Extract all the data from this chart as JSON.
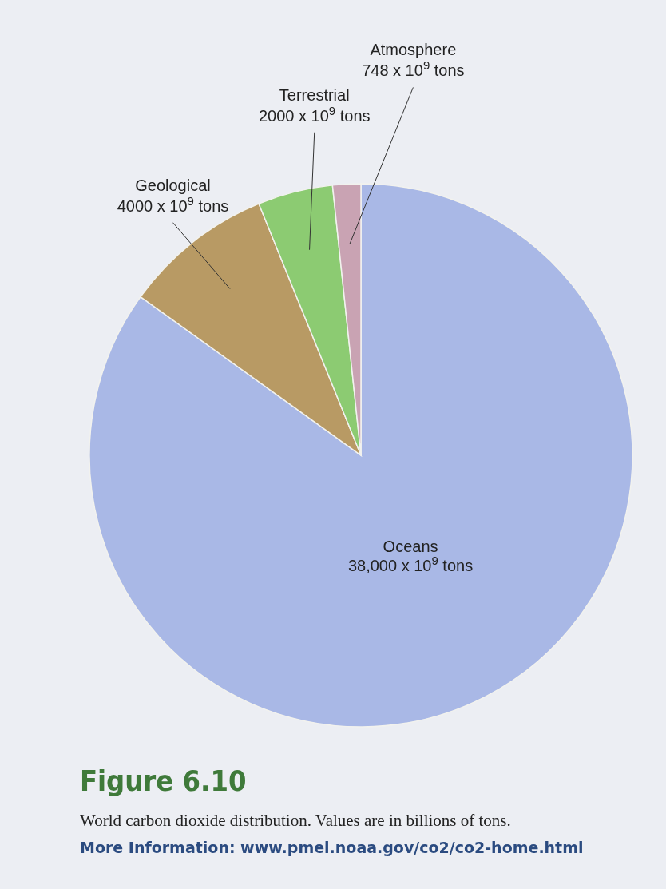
{
  "chart_data": {
    "type": "pie",
    "title": "Figure 6.10",
    "categories": [
      "Oceans",
      "Geological",
      "Terrestrial",
      "Atmosphere"
    ],
    "values": [
      38000,
      4000,
      2000,
      748
    ],
    "value_labels": [
      "38,000 x 10$^{9}$ tons",
      "4000 x 10$^{9}$ tons",
      "2000 x 10$^{9}$ tons",
      "748 x 10$^{9}$ tons"
    ],
    "colors": [
      "#a9b8e6",
      "#b89a64",
      "#8ccb72",
      "#c9a3b3"
    ],
    "annotations": [
      "World carbon dioxide distribution. Values are in billions of tons.",
      "More Information: www.pmel.noaa.gov/co2/co2-home.html"
    ]
  }
}
